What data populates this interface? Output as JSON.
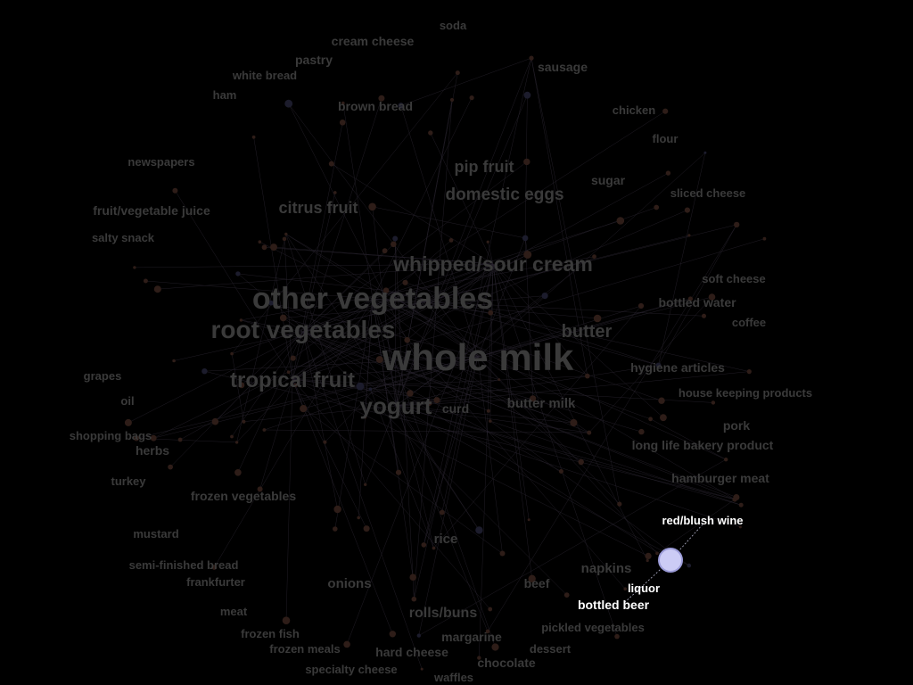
{
  "graph": {
    "background": "#000000",
    "dim_label_color": "#3a3a3a",
    "active_label_color": "#ffffff",
    "selected_node_color": "#ccccf5",
    "selected_node": "liquor",
    "neighbors": [
      "red/blush wine",
      "bottled beer"
    ],
    "labels": [
      {
        "text": "soda"
      },
      {
        "text": "cream cheese"
      },
      {
        "text": "pastry"
      },
      {
        "text": "sausage"
      },
      {
        "text": "white bread"
      },
      {
        "text": "ham"
      },
      {
        "text": "brown bread"
      },
      {
        "text": "chicken"
      },
      {
        "text": "flour"
      },
      {
        "text": "newspapers"
      },
      {
        "text": "pip fruit"
      },
      {
        "text": "sugar"
      },
      {
        "text": "domestic eggs"
      },
      {
        "text": "sliced cheese"
      },
      {
        "text": "fruit/vegetable juice"
      },
      {
        "text": "citrus fruit"
      },
      {
        "text": "salty snack"
      },
      {
        "text": "whipped/sour cream"
      },
      {
        "text": "soft cheese"
      },
      {
        "text": "other vegetables"
      },
      {
        "text": "bottled water"
      },
      {
        "text": "coffee"
      },
      {
        "text": "root vegetables"
      },
      {
        "text": "butter"
      },
      {
        "text": "whole milk"
      },
      {
        "text": "hygiene articles"
      },
      {
        "text": "grapes"
      },
      {
        "text": "tropical fruit"
      },
      {
        "text": "house keeping products"
      },
      {
        "text": "oil"
      },
      {
        "text": "yogurt"
      },
      {
        "text": "curd"
      },
      {
        "text": "butter milk"
      },
      {
        "text": "pork"
      },
      {
        "text": "shopping bags"
      },
      {
        "text": "long life bakery product"
      },
      {
        "text": "herbs"
      },
      {
        "text": "turkey"
      },
      {
        "text": "hamburger meat"
      },
      {
        "text": "frozen vegetables"
      },
      {
        "text": "red/blush wine"
      },
      {
        "text": "mustard"
      },
      {
        "text": "rice"
      },
      {
        "text": "semi-finished bread"
      },
      {
        "text": "napkins"
      },
      {
        "text": "frankfurter"
      },
      {
        "text": "onions"
      },
      {
        "text": "beef"
      },
      {
        "text": "liquor"
      },
      {
        "text": "meat"
      },
      {
        "text": "bottled beer"
      },
      {
        "text": "rolls/buns"
      },
      {
        "text": "pickled vegetables"
      },
      {
        "text": "frozen fish"
      },
      {
        "text": "margarine"
      },
      {
        "text": "frozen meals"
      },
      {
        "text": "hard cheese"
      },
      {
        "text": "dessert"
      },
      {
        "text": "chocolate"
      },
      {
        "text": "specialty cheese"
      },
      {
        "text": "waffles"
      }
    ]
  }
}
